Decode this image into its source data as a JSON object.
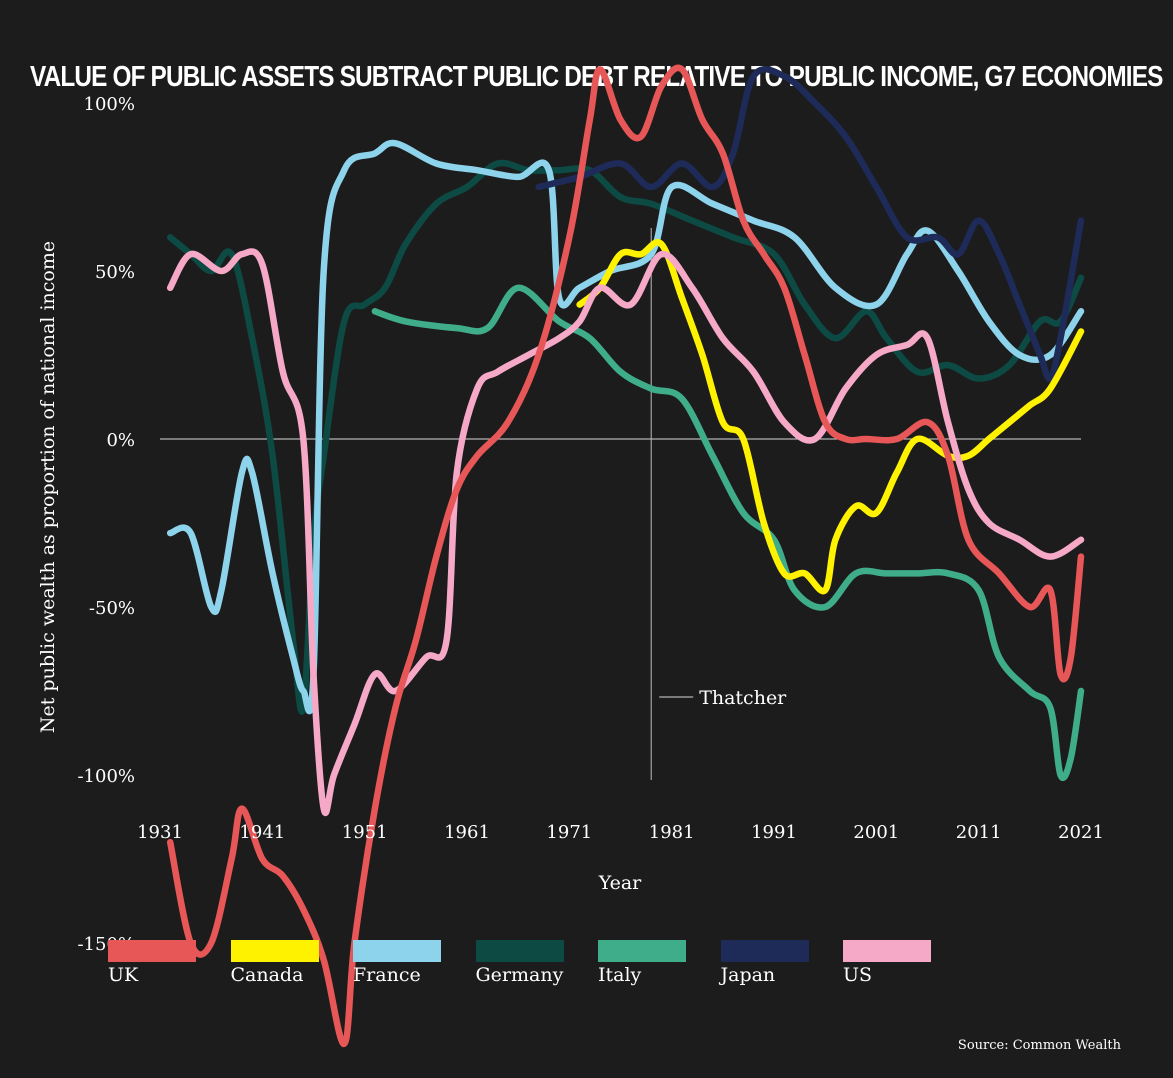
{
  "chart_data": {
    "type": "line",
    "title": "Value of public assets subtract public debt relative to public income, G7 economies",
    "xlabel": "Year",
    "ylabel": "Net public wealth as proportion of national income",
    "xlim": [
      1931,
      2021
    ],
    "ylim": [
      -200,
      125
    ],
    "x_ticks": [
      "1931",
      "1941",
      "1951",
      "1961",
      "1971",
      "1981",
      "1991",
      "2001",
      "2011",
      "2021"
    ],
    "y_ticks": [
      {
        "value": 100,
        "label": "100%"
      },
      {
        "value": 50,
        "label": "50%"
      },
      {
        "value": 0,
        "label": "0%"
      },
      {
        "value": -50,
        "label": "-50%"
      },
      {
        "value": -100,
        "label": "-100%"
      },
      {
        "value": -150,
        "label": "-150%"
      }
    ],
    "annotation": {
      "year": 1979,
      "label": "Thatcher"
    },
    "series": [
      {
        "name": "Germany",
        "color": "#0c4a43",
        "points": [
          [
            1932,
            60
          ],
          [
            1934,
            55
          ],
          [
            1936,
            50
          ],
          [
            1938,
            55
          ],
          [
            1940,
            30
          ],
          [
            1942,
            -5
          ],
          [
            1944,
            -60
          ],
          [
            1945,
            -80
          ],
          [
            1946,
            -30
          ],
          [
            1947,
            -5
          ],
          [
            1949,
            35
          ],
          [
            1951,
            40
          ],
          [
            1953,
            45
          ],
          [
            1955,
            58
          ],
          [
            1958,
            70
          ],
          [
            1961,
            75
          ],
          [
            1964,
            82
          ],
          [
            1967,
            80
          ],
          [
            1970,
            80
          ],
          [
            1973,
            80
          ],
          [
            1976,
            72
          ],
          [
            1979,
            70
          ],
          [
            1983,
            65
          ],
          [
            1987,
            60
          ],
          [
            1991,
            55
          ],
          [
            1994,
            40
          ],
          [
            1997,
            30
          ],
          [
            2000,
            38
          ],
          [
            2002,
            30
          ],
          [
            2005,
            20
          ],
          [
            2008,
            22
          ],
          [
            2011,
            18
          ],
          [
            2014,
            22
          ],
          [
            2017,
            35
          ],
          [
            2019,
            35
          ],
          [
            2021,
            48
          ]
        ]
      },
      {
        "name": "Italy",
        "color": "#3fad8a",
        "points": [
          [
            1952,
            38
          ],
          [
            1955,
            35
          ],
          [
            1960,
            33
          ],
          [
            1963,
            33
          ],
          [
            1966,
            45
          ],
          [
            1970,
            35
          ],
          [
            1973,
            30
          ],
          [
            1976,
            20
          ],
          [
            1979,
            15
          ],
          [
            1982,
            12
          ],
          [
            1985,
            -5
          ],
          [
            1988,
            -22
          ],
          [
            1991,
            -30
          ],
          [
            1993,
            -45
          ],
          [
            1996,
            -50
          ],
          [
            1999,
            -40
          ],
          [
            2002,
            -40
          ],
          [
            2005,
            -40
          ],
          [
            2008,
            -40
          ],
          [
            2011,
            -45
          ],
          [
            2013,
            -65
          ],
          [
            2016,
            -75
          ],
          [
            2018,
            -80
          ],
          [
            2019,
            -100
          ],
          [
            2020,
            -95
          ],
          [
            2021,
            -75
          ]
        ]
      },
      {
        "name": "France",
        "color": "#8dd3ec",
        "points": [
          [
            1932,
            -28
          ],
          [
            1934,
            -28
          ],
          [
            1936,
            -50
          ],
          [
            1937,
            -45
          ],
          [
            1939,
            -10
          ],
          [
            1940,
            -10
          ],
          [
            1942,
            -40
          ],
          [
            1944,
            -65
          ],
          [
            1945,
            -75
          ],
          [
            1946,
            -70
          ],
          [
            1947,
            50
          ],
          [
            1949,
            80
          ],
          [
            1952,
            85
          ],
          [
            1954,
            88
          ],
          [
            1958,
            82
          ],
          [
            1962,
            80
          ],
          [
            1966,
            78
          ],
          [
            1969,
            80
          ],
          [
            1970,
            42
          ],
          [
            1972,
            45
          ],
          [
            1975,
            50
          ],
          [
            1979,
            55
          ],
          [
            1981,
            75
          ],
          [
            1985,
            70
          ],
          [
            1989,
            65
          ],
          [
            1993,
            60
          ],
          [
            1997,
            45
          ],
          [
            2001,
            40
          ],
          [
            2004,
            55
          ],
          [
            2006,
            62
          ],
          [
            2009,
            50
          ],
          [
            2012,
            35
          ],
          [
            2015,
            25
          ],
          [
            2018,
            25
          ],
          [
            2021,
            38
          ]
        ]
      },
      {
        "name": "Japan",
        "color": "#1e2a57",
        "points": [
          [
            1968,
            75
          ],
          [
            1972,
            78
          ],
          [
            1976,
            82
          ],
          [
            1979,
            75
          ],
          [
            1982,
            82
          ],
          [
            1985,
            75
          ],
          [
            1987,
            85
          ],
          [
            1989,
            108
          ],
          [
            1992,
            108
          ],
          [
            1995,
            100
          ],
          [
            1998,
            90
          ],
          [
            2001,
            75
          ],
          [
            2004,
            60
          ],
          [
            2007,
            60
          ],
          [
            2009,
            55
          ],
          [
            2011,
            65
          ],
          [
            2013,
            55
          ],
          [
            2015,
            40
          ],
          [
            2017,
            25
          ],
          [
            2018,
            18
          ],
          [
            2019,
            30
          ],
          [
            2021,
            65
          ]
        ]
      },
      {
        "name": "Canada",
        "color": "#fff200",
        "points": [
          [
            1972,
            40
          ],
          [
            1974,
            45
          ],
          [
            1976,
            55
          ],
          [
            1978,
            55
          ],
          [
            1980,
            58
          ],
          [
            1982,
            42
          ],
          [
            1984,
            25
          ],
          [
            1986,
            5
          ],
          [
            1988,
            0
          ],
          [
            1990,
            -25
          ],
          [
            1992,
            -40
          ],
          [
            1994,
            -40
          ],
          [
            1996,
            -45
          ],
          [
            1997,
            -30
          ],
          [
            1999,
            -20
          ],
          [
            2001,
            -22
          ],
          [
            2003,
            -10
          ],
          [
            2005,
            0
          ],
          [
            2008,
            -5
          ],
          [
            2010,
            -5
          ],
          [
            2012,
            0
          ],
          [
            2014,
            5
          ],
          [
            2016,
            10
          ],
          [
            2018,
            15
          ],
          [
            2021,
            32
          ]
        ]
      },
      {
        "name": "US",
        "color": "#f6a8c7",
        "points": [
          [
            1932,
            45
          ],
          [
            1934,
            55
          ],
          [
            1937,
            50
          ],
          [
            1939,
            55
          ],
          [
            1941,
            52
          ],
          [
            1943,
            20
          ],
          [
            1945,
            0
          ],
          [
            1946,
            -70
          ],
          [
            1947,
            -110
          ],
          [
            1948,
            -100
          ],
          [
            1950,
            -85
          ],
          [
            1952,
            -70
          ],
          [
            1954,
            -75
          ],
          [
            1957,
            -65
          ],
          [
            1959,
            -60
          ],
          [
            1960,
            -10
          ],
          [
            1962,
            15
          ],
          [
            1964,
            20
          ],
          [
            1967,
            25
          ],
          [
            1970,
            30
          ],
          [
            1972,
            35
          ],
          [
            1974,
            45
          ],
          [
            1977,
            40
          ],
          [
            1980,
            55
          ],
          [
            1983,
            45
          ],
          [
            1986,
            30
          ],
          [
            1989,
            20
          ],
          [
            1992,
            5
          ],
          [
            1995,
            0
          ],
          [
            1998,
            15
          ],
          [
            2001,
            25
          ],
          [
            2004,
            28
          ],
          [
            2006,
            30
          ],
          [
            2008,
            5
          ],
          [
            2010,
            -15
          ],
          [
            2012,
            -25
          ],
          [
            2015,
            -30
          ],
          [
            2018,
            -35
          ],
          [
            2021,
            -30
          ]
        ]
      },
      {
        "name": "UK",
        "color": "#e85757",
        "points": [
          [
            1932,
            -120
          ],
          [
            1934,
            -150
          ],
          [
            1936,
            -150
          ],
          [
            1938,
            -125
          ],
          [
            1939,
            -110
          ],
          [
            1941,
            -125
          ],
          [
            1943,
            -130
          ],
          [
            1945,
            -140
          ],
          [
            1947,
            -155
          ],
          [
            1949,
            -180
          ],
          [
            1950,
            -150
          ],
          [
            1952,
            -110
          ],
          [
            1954,
            -80
          ],
          [
            1956,
            -60
          ],
          [
            1958,
            -35
          ],
          [
            1960,
            -15
          ],
          [
            1962,
            -5
          ],
          [
            1965,
            5
          ],
          [
            1968,
            25
          ],
          [
            1971,
            60
          ],
          [
            1973,
            95
          ],
          [
            1974,
            110
          ],
          [
            1976,
            95
          ],
          [
            1978,
            90
          ],
          [
            1980,
            105
          ],
          [
            1982,
            110
          ],
          [
            1984,
            95
          ],
          [
            1986,
            85
          ],
          [
            1988,
            65
          ],
          [
            1990,
            55
          ],
          [
            1992,
            45
          ],
          [
            1994,
            25
          ],
          [
            1996,
            5
          ],
          [
            1998,
            0
          ],
          [
            2000,
            0
          ],
          [
            2003,
            0
          ],
          [
            2006,
            5
          ],
          [
            2008,
            -5
          ],
          [
            2010,
            -30
          ],
          [
            2013,
            -40
          ],
          [
            2016,
            -50
          ],
          [
            2018,
            -45
          ],
          [
            2019,
            -70
          ],
          [
            2020,
            -65
          ],
          [
            2021,
            -35
          ]
        ]
      }
    ],
    "legend_order": [
      "UK",
      "Canada",
      "France",
      "Germany",
      "Italy",
      "Japan",
      "US"
    ]
  },
  "source": "Source: Common Wealth"
}
